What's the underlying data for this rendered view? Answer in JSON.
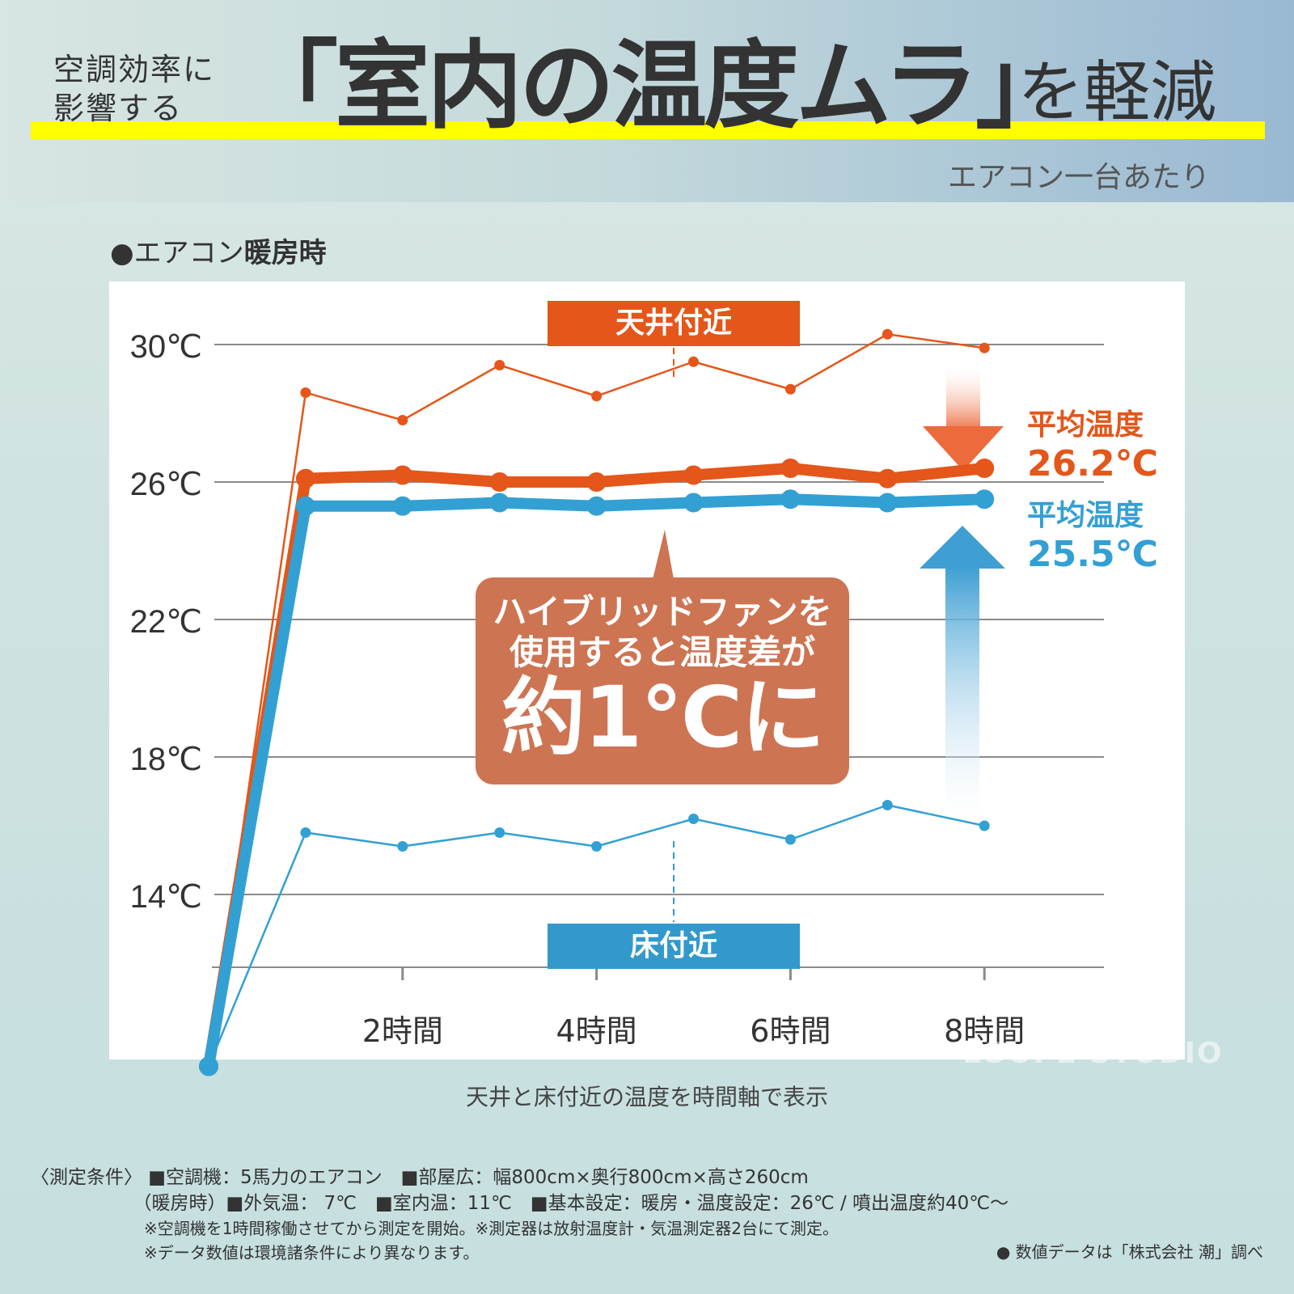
{
  "header": {
    "pre_title_line1": "空調効率に",
    "pre_title_line2": "影響する",
    "main_title": "「室内の温度ムラ」",
    "post_title": "を軽減",
    "per_unit": "エアコン一台あたり"
  },
  "section_label": {
    "bullet": "●",
    "text_normal": "エアコン",
    "text_bold": "暖房時"
  },
  "chart_data": {
    "type": "line",
    "title": "エアコン暖房時",
    "xlabel": "",
    "ylabel": "",
    "x": [
      0,
      1,
      2,
      3,
      4,
      5,
      6,
      7,
      8
    ],
    "x_tick_labels": [
      "2時間",
      "4時間",
      "6時間",
      "8時間"
    ],
    "x_ticks": [
      2,
      4,
      6,
      8
    ],
    "y_tick_labels": [
      "30℃",
      "26℃",
      "22℃",
      "18℃",
      "14℃"
    ],
    "y_ticks": [
      30,
      26,
      22,
      18,
      14
    ],
    "ylim": [
      10,
      32
    ],
    "grid": true,
    "series": [
      {
        "name": "天井付近",
        "style": "thin",
        "color": "#e4561a",
        "values": [
          9,
          28.6,
          27.8,
          29.4,
          28.5,
          29.5,
          28.7,
          30.3,
          29.9
        ]
      },
      {
        "name": "天井付近 (ハイブリッドファン使用)",
        "style": "thick",
        "color": "#e4561a",
        "values": [
          9,
          26.1,
          26.2,
          26.0,
          26.0,
          26.2,
          26.4,
          26.1,
          26.4
        ]
      },
      {
        "name": "床付近 (ハイブリッドファン使用)",
        "style": "thick",
        "color": "#33a0d4",
        "values": [
          9,
          25.3,
          25.3,
          25.4,
          25.3,
          25.4,
          25.5,
          25.4,
          25.5
        ]
      },
      {
        "name": "床付近",
        "style": "thin",
        "color": "#33a0d4",
        "values": [
          9,
          15.8,
          15.4,
          15.8,
          15.4,
          16.2,
          15.6,
          16.6,
          16.0
        ]
      }
    ],
    "annotations": [
      {
        "text": "天井付近",
        "type": "tag",
        "color": "#e4561a"
      },
      {
        "text": "床付近",
        "type": "tag",
        "color": "#3399cc"
      },
      {
        "text": "平均温度 26.2℃",
        "color": "#e4561a"
      },
      {
        "text": "平均温度 25.5℃",
        "color": "#33a0d4"
      },
      {
        "text": "ハイブリッドファンを使用すると温度差が約1℃に",
        "type": "callout",
        "color": "#cd7453"
      }
    ]
  },
  "tags": {
    "ceiling": "天井付近",
    "floor": "床付近"
  },
  "averages": {
    "ceiling_label": "平均温度",
    "ceiling_value": "26.2℃",
    "floor_label": "平均温度",
    "floor_value": "25.5℃"
  },
  "callout": {
    "line1": "ハイブリッドファンを",
    "line2": "使用すると温度差が",
    "line3": "約1℃に"
  },
  "caption": "天井と床付近の温度を時間軸で表示",
  "footnotes": {
    "row1": "〈測定条件〉 ■空調機：5馬力のエアコン　■部屋広：幅800cm×奥行800cm×高さ260cm",
    "row2": "　　　　　　（暖房時）■外気温：  7℃　■室内温：11℃　■基本設定：暖房・温度設定：26℃ / 噴出温度約40℃～",
    "row3": "　　　　　　　※空調機を1時間稼働させてから測定を開始。※測定器は放射温度計・気温測定器2台にて測定。",
    "row4": "　　　　　　　※データ数値は環境諸条件により異なります。"
  },
  "source": "● 数値データは「株式会社 潮」調べ",
  "watermark": "LOUPE STUDIO",
  "colors": {
    "orange": "#e4561a",
    "blue": "#33a0d4",
    "callout": "#cd7453",
    "highlight": "#ffff00",
    "text": "#333333"
  }
}
